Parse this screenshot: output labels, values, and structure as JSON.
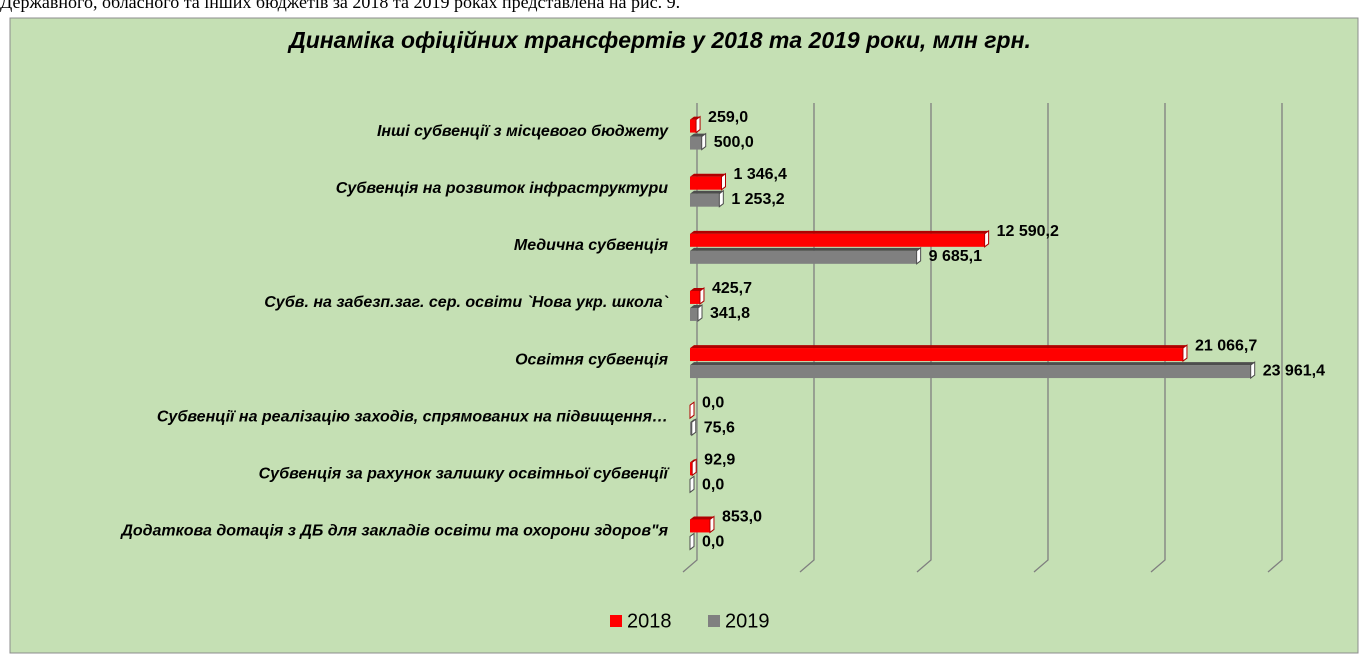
{
  "caption_above": "Державного, обласного та інших бюджетів за 2018 та 2019 роках представлена на рис. 9.",
  "chart_data": {
    "type": "bar3d_horizontal",
    "title": "Динаміка офіційних трансфертів  у 2018 та 2019 роки, млн грн.",
    "categories": [
      "Інші субвенції з місцевого бюджету",
      "Субвенція на розвиток інфраструктури",
      "Медична субвенція",
      "Субв. на забезп.заг. сер. освіти `Нова укр. школа`",
      "Освітня субвенція",
      "Субвенції на реалізацію заходів, спрямованих на підвищення…",
      "Субвенція за рахунок залишку освітньої субвенції",
      "Додаткова дотація з ДБ для закладів освіти та охорони здоров\"я"
    ],
    "series": [
      {
        "name": "2018",
        "color": "#ff0000",
        "values": [
          259.0,
          1346.4,
          12590.2,
          425.7,
          21066.7,
          0.0,
          92.9,
          853.0
        ],
        "value_labels": [
          "259,0",
          "1 346,4",
          "12 590,2",
          "425,7",
          "21 066,7",
          "0,0",
          "92,9",
          "853,0"
        ]
      },
      {
        "name": "2019",
        "color": "#808080",
        "values": [
          500.0,
          1253.2,
          9685.1,
          341.8,
          23961.4,
          75.6,
          0.0,
          0.0
        ],
        "value_labels": [
          "500,0",
          "1 253,2",
          "9 685,1",
          "341,8",
          "23 961,4",
          "75,6",
          "0,0",
          "0,0"
        ]
      }
    ],
    "xlim": [
      0,
      25000
    ],
    "xticks": [
      0,
      5000,
      10000,
      15000,
      20000,
      25000
    ],
    "grid": true,
    "legend": "bottom"
  }
}
